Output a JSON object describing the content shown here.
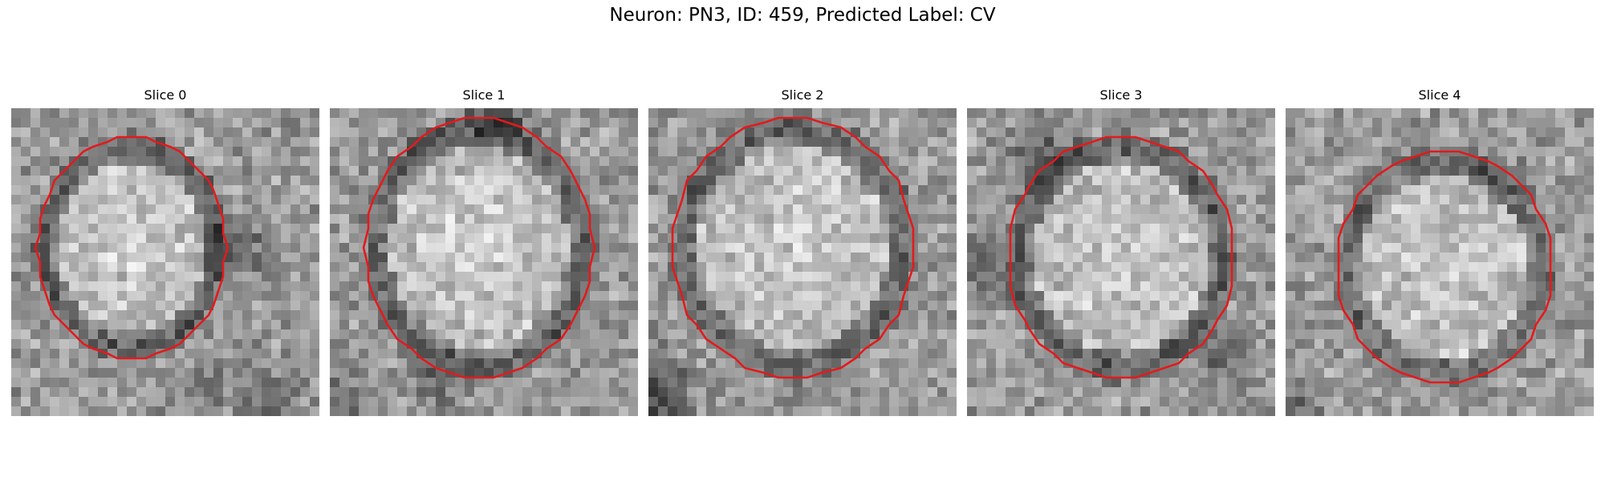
{
  "figure": {
    "title": "Neuron: PN3, ID: 459, Predicted Label: CV"
  },
  "panels": [
    {
      "title": "Slice 0",
      "contour_color": "#e31a1c"
    },
    {
      "title": "Slice 1",
      "contour_color": "#e31a1c"
    },
    {
      "title": "Slice 2",
      "contour_color": "#e31a1c"
    },
    {
      "title": "Slice 3",
      "contour_color": "#e31a1c"
    },
    {
      "title": "Slice 4",
      "contour_color": "#e31a1c"
    }
  ],
  "image_style": "grayscale pixel microscopy patch with red cell-boundary contour"
}
